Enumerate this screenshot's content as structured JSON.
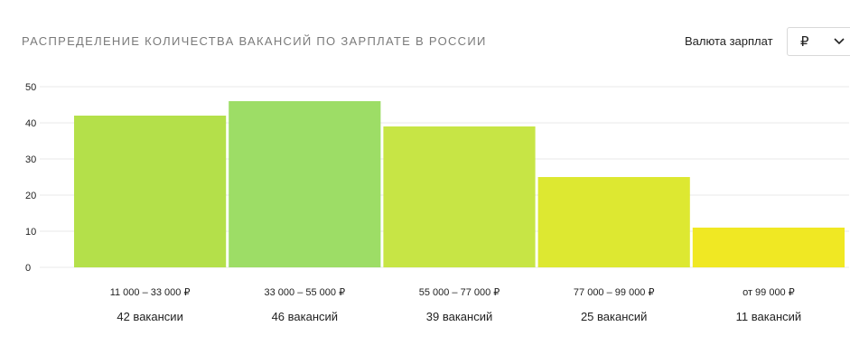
{
  "header": {
    "title": "РАСПРЕДЕЛЕНИЕ КОЛИЧЕСТВА ВАКАНСИЙ ПО ЗАРПЛАТЕ В РОССИИ",
    "currency_label": "Валюта зарплат",
    "currency_value": "₽",
    "currency_icon": "chevron-down-icon"
  },
  "chart_data": {
    "type": "bar",
    "title": "РАСПРЕДЕЛЕНИЕ КОЛИЧЕСТВА ВАКАНСИЙ ПО ЗАРПЛАТЕ В РОССИИ",
    "xlabel": "",
    "ylabel": "",
    "ylim": [
      0,
      50
    ],
    "yticks": [
      "0",
      "10",
      "20",
      "30",
      "40",
      "50"
    ],
    "grid": true,
    "categories": [
      "11 000 – 33 000 ₽",
      "33 000 – 55 000 ₽",
      "55 000 – 77 000 ₽",
      "77 000 – 99 000 ₽",
      "от 99 000 ₽"
    ],
    "values": [
      42,
      46,
      39,
      25,
      11
    ],
    "count_labels": [
      "42 вакансии",
      "46 вакансий",
      "39 вакансий",
      "25 вакансий",
      "11 вакансий"
    ],
    "colors": [
      "#b4e04a",
      "#9ddd66",
      "#c7e545",
      "#dde831",
      "#f0e823"
    ]
  }
}
